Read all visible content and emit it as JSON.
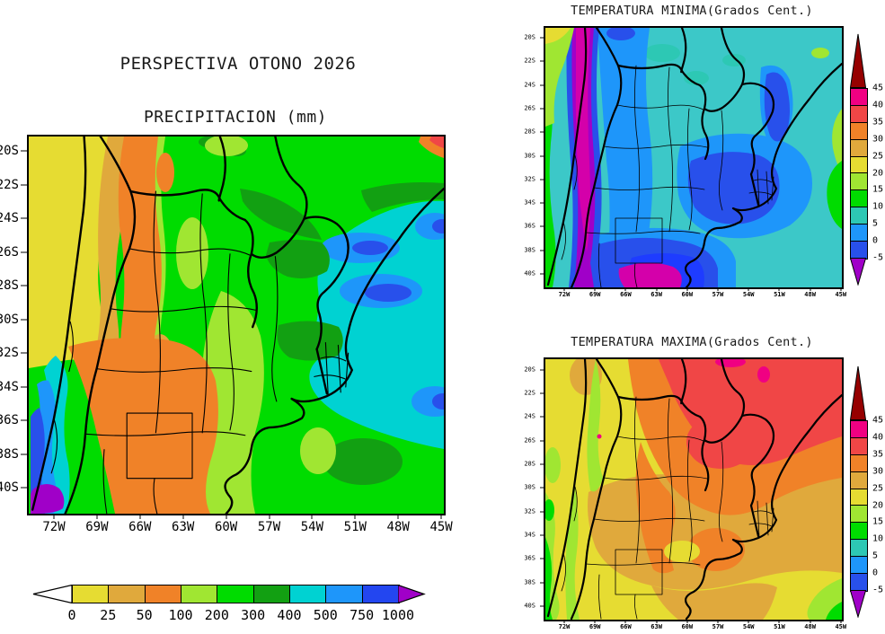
{
  "palette": {
    "yellow": "#E6DC32",
    "tan": "#E0A93C",
    "orange": "#F08228",
    "ylgreen": "#A0E632",
    "green": "#00DC00",
    "dkgreen": "#12A012",
    "cyan": "#00D2D2",
    "mapcyan": "#3CC8C8",
    "teal": "#2DC8B4",
    "azure": "#1E96FA",
    "blue": "#2850EB",
    "dkblue": "#1E3CFF",
    "purple": "#A000C8",
    "magenta": "#D400AA",
    "pink": "#F00082",
    "red": "#F04646",
    "dkred": "#960000",
    "white": "#FFFFFF",
    "black": "#000000"
  },
  "left_panel": {
    "title": "PERSPECTIVA OTONO 2026",
    "subtitle": "PRECIPITACION (mm)",
    "lat_labels": [
      "20S",
      "22S",
      "24S",
      "26S",
      "28S",
      "30S",
      "32S",
      "34S",
      "36S",
      "38S",
      "40S"
    ],
    "lon_labels": [
      "72W",
      "69W",
      "66W",
      "63W",
      "60W",
      "57W",
      "54W",
      "51W",
      "48W",
      "45W"
    ],
    "colorbar": {
      "labels": [
        "0",
        "25",
        "50",
        "100",
        "200",
        "300",
        "400",
        "500",
        "750",
        "1000"
      ],
      "cell_colors": [
        "#E6DC32",
        "#E0A93C",
        "#F08228",
        "#A0E632",
        "#00DC00",
        "#12A012",
        "#00D2D2",
        "#1E96FA",
        "#2346F0"
      ],
      "left_arrow_color": "#FFFFFF",
      "right_arrow_color": "#A000C8"
    }
  },
  "min_map": {
    "title": "TEMPERATURA MINIMA(Grados Cent.)",
    "lat_labels": [
      "20S",
      "22S",
      "24S",
      "26S",
      "28S",
      "30S",
      "32S",
      "34S",
      "36S",
      "38S",
      "40S"
    ],
    "lon_labels": [
      "72W",
      "69W",
      "66W",
      "63W",
      "60W",
      "57W",
      "54W",
      "51W",
      "48W",
      "45W"
    ],
    "colorbar": {
      "labels": [
        "45",
        "40",
        "35",
        "30",
        "25",
        "20",
        "15",
        "10",
        "5",
        "0",
        "-5"
      ],
      "cell_colors": [
        "#F00082",
        "#F04646",
        "#F08228",
        "#E0A93C",
        "#E6DC32",
        "#A0E632",
        "#00DC00",
        "#2DC8B4",
        "#1E96FA",
        "#2850EB"
      ],
      "top_arrow_color": "#960000",
      "bottom_arrow_color": "#A000C8"
    }
  },
  "max_map": {
    "title": "TEMPERATURA MAXIMA(Grados Cent.)",
    "lat_labels": [
      "20S",
      "22S",
      "24S",
      "26S",
      "28S",
      "30S",
      "32S",
      "34S",
      "36S",
      "38S",
      "40S"
    ],
    "lon_labels": [
      "72W",
      "69W",
      "66W",
      "63W",
      "60W",
      "57W",
      "54W",
      "51W",
      "48W",
      "45W"
    ],
    "colorbar": {
      "labels": [
        "45",
        "40",
        "35",
        "30",
        "25",
        "20",
        "15",
        "10",
        "5",
        "0",
        "-5"
      ],
      "cell_colors": [
        "#F00082",
        "#F04646",
        "#F08228",
        "#E0A93C",
        "#E6DC32",
        "#A0E632",
        "#00DC00",
        "#2DC8B4",
        "#1E96FA",
        "#2850EB"
      ],
      "top_arrow_color": "#960000",
      "bottom_arrow_color": "#A000C8"
    }
  }
}
